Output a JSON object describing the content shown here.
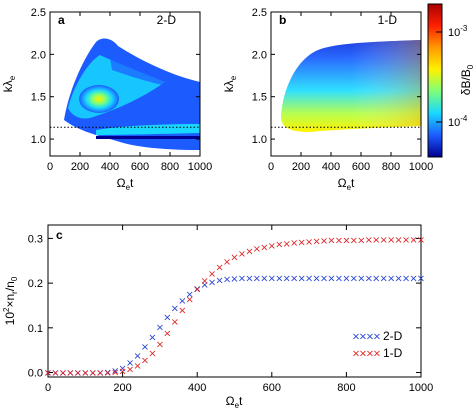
{
  "panels": {
    "a": {
      "letter": "a",
      "tag": "2-D",
      "tag_color": "#1f3fd6"
    },
    "b": {
      "letter": "b",
      "tag": "1-D",
      "tag_color": "#e02020"
    },
    "c": {
      "letter": "c"
    }
  },
  "labels": {
    "k_main": "kλ",
    "k_sub": "e",
    "omega_main": "Ω",
    "omega_sub": "e",
    "omega_tail": "t",
    "cbar_main": "δB/B",
    "cbar_sub": "0",
    "c_ylabel_pre": "10",
    "c_ylabel_sup": "2",
    "c_ylabel_mid": "×n",
    "c_ylabel_sub1": "r",
    "c_ylabel_slash": "/n",
    "c_ylabel_sub2": "0"
  },
  "colorbar": {
    "scale": "log",
    "ticks": [
      "10",
      "10"
    ],
    "tick_exponents": [
      "-3",
      "-4"
    ],
    "colors": [
      "#a80000",
      "#ff2000",
      "#ff9a00",
      "#fff200",
      "#7cff7a",
      "#18d8ff",
      "#1c5cff",
      "#000090"
    ]
  },
  "colors": {
    "series_2d": "#1f3fd6",
    "series_1d": "#e02020"
  },
  "chart_data": [
    {
      "type": "heatmap",
      "panel": "a",
      "xlim": [
        0,
        1000
      ],
      "ylim": [
        0.8,
        2.5
      ],
      "x_ticks": [
        "0",
        "200",
        "400",
        "600",
        "800",
        "1000"
      ],
      "y_ticks": [
        "1.0",
        "1.5",
        "2.0",
        "2.5"
      ],
      "reference_line_y": 1.14
    },
    {
      "type": "heatmap",
      "panel": "b",
      "xlim": [
        0,
        1000
      ],
      "ylim": [
        0.8,
        2.5
      ],
      "x_ticks": [
        "0",
        "200",
        "400",
        "600",
        "800",
        "1000"
      ],
      "y_ticks": [
        "1.0",
        "1.5",
        "2.0",
        "2.5"
      ],
      "reference_line_y": 1.14
    },
    {
      "type": "scatter",
      "panel": "c",
      "xlim": [
        0,
        1000
      ],
      "ylim": [
        -0.01,
        0.33
      ],
      "x_ticks": [
        "0",
        "200",
        "400",
        "600",
        "800",
        "1000"
      ],
      "y_ticks": [
        "0.0",
        "0.1",
        "0.2",
        "0.3"
      ],
      "legend_position": "bottom-right",
      "series": [
        {
          "name": "2-D",
          "marker": "×",
          "x": [
            0,
            20,
            40,
            60,
            80,
            100,
            120,
            140,
            160,
            180,
            200,
            220,
            240,
            260,
            280,
            300,
            320,
            340,
            360,
            380,
            400,
            420,
            440,
            460,
            480,
            500,
            520,
            540,
            560,
            580,
            600,
            620,
            640,
            660,
            680,
            700,
            720,
            740,
            760,
            780,
            800,
            820,
            840,
            860,
            880,
            900,
            920,
            940,
            960,
            980,
            1000
          ],
          "y": [
            0,
            0,
            0,
            0,
            0,
            0,
            0,
            0,
            0.001,
            0.004,
            0.01,
            0.022,
            0.038,
            0.058,
            0.08,
            0.102,
            0.124,
            0.144,
            0.161,
            0.176,
            0.188,
            0.197,
            0.203,
            0.207,
            0.209,
            0.21,
            0.211,
            0.211,
            0.212,
            0.212,
            0.212,
            0.212,
            0.212,
            0.212,
            0.212,
            0.212,
            0.212,
            0.212,
            0.212,
            0.212,
            0.212,
            0.212,
            0.212,
            0.212,
            0.212,
            0.212,
            0.212,
            0.212,
            0.212,
            0.212,
            0.212
          ]
        },
        {
          "name": "1-D",
          "marker": "×",
          "x": [
            0,
            20,
            40,
            60,
            80,
            100,
            120,
            140,
            160,
            180,
            200,
            220,
            240,
            260,
            280,
            300,
            320,
            340,
            360,
            380,
            400,
            420,
            440,
            460,
            480,
            500,
            520,
            540,
            560,
            580,
            600,
            620,
            640,
            660,
            680,
            700,
            720,
            740,
            760,
            780,
            800,
            820,
            840,
            860,
            880,
            900,
            920,
            940,
            960,
            980,
            1000
          ],
          "y": [
            0,
            0,
            0,
            0,
            0,
            0,
            0,
            0,
            0,
            0.001,
            0.003,
            0.008,
            0.016,
            0.028,
            0.044,
            0.064,
            0.088,
            0.114,
            0.14,
            0.165,
            0.187,
            0.206,
            0.222,
            0.236,
            0.248,
            0.258,
            0.266,
            0.272,
            0.277,
            0.281,
            0.284,
            0.287,
            0.289,
            0.291,
            0.292,
            0.293,
            0.294,
            0.295,
            0.296,
            0.296,
            0.297,
            0.297,
            0.297,
            0.298,
            0.298,
            0.298,
            0.298,
            0.298,
            0.298,
            0.298,
            0.298
          ]
        }
      ]
    }
  ]
}
